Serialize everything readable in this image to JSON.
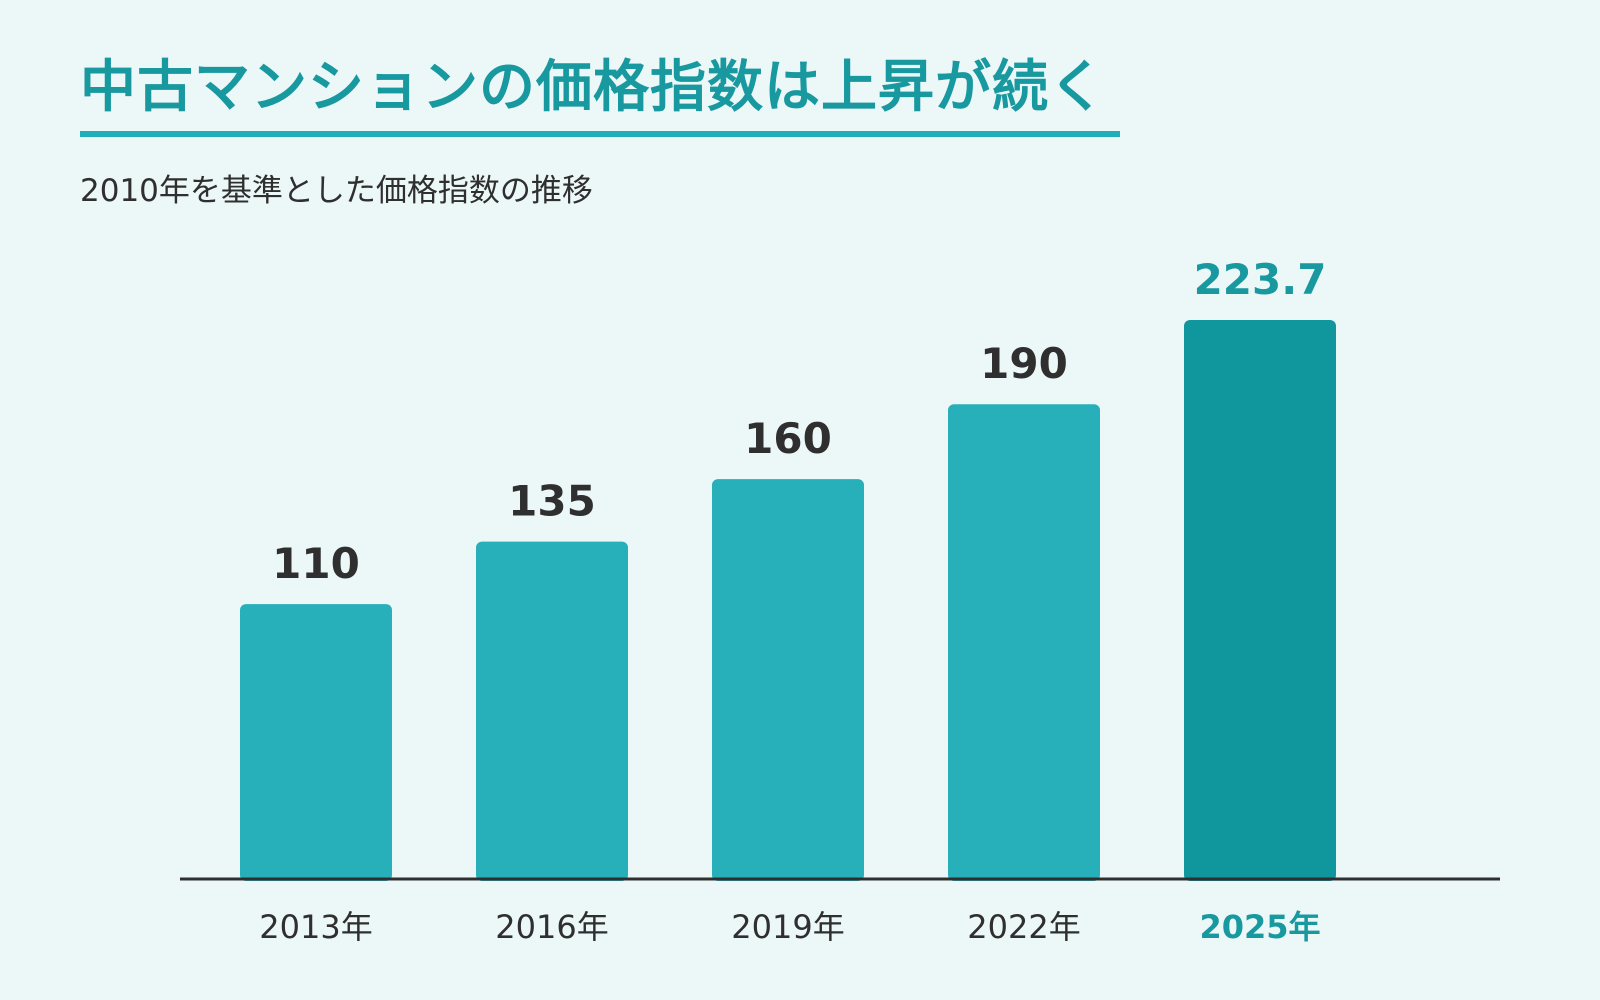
{
  "header": {
    "title": "中古マンションの価格指数は上昇が続く",
    "subtitle": "2010年を基準とした価格指数の推移"
  },
  "colors": {
    "background": "#ecf7f8",
    "title": "#18989f",
    "bar": "#27afba",
    "bar_highlight": "#10969d",
    "text": "#2f2f2f",
    "highlight_text": "#18989f",
    "axis": "#2f2f2f"
  },
  "chart_data": {
    "type": "bar",
    "title": "中古マンションの価格指数は上昇が続く",
    "subtitle": "2010年を基準とした価格指数の推移",
    "categories": [
      "2013年",
      "2016年",
      "2019年",
      "2022年",
      "2025年"
    ],
    "values": [
      110,
      135,
      160,
      190,
      223.7
    ],
    "value_labels": [
      "110",
      "135",
      "160",
      "190",
      "223.7"
    ],
    "highlight_index": 4,
    "xlabel": "",
    "ylabel": "",
    "ylim": [
      0,
      223.7
    ],
    "grid": false,
    "legend": "none"
  }
}
